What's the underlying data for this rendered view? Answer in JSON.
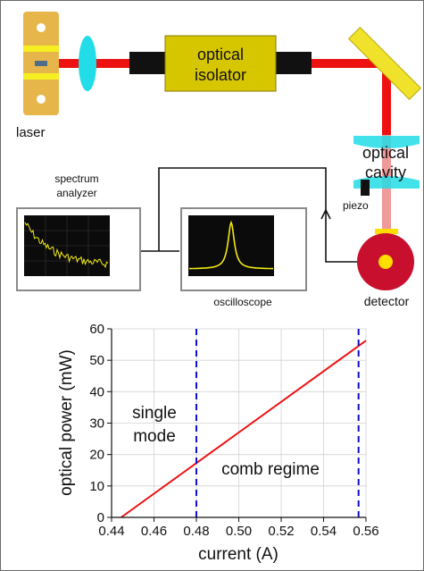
{
  "schematic": {
    "laser_label": "laser",
    "isolator_label_line1": "optical",
    "isolator_label_line2": "isolator",
    "cavity_label_line1": "optical",
    "cavity_label_line2": "cavity",
    "piezo_label": "piezo",
    "detector_label": "detector",
    "spectrum_label_line1": "spectrum",
    "spectrum_label_line2": "analyzer",
    "oscilloscope_label": "oscilloscope",
    "colors": {
      "beam": "#ee1111",
      "beam_faded": "#f09a9a",
      "laser_body": "#e7b64b",
      "laser_stripe": "#f5ef22",
      "lens": "#22dde8",
      "isolator": "#d6c600",
      "mirror": "#f0e22a",
      "detector": "#c8102e",
      "detector_center": "#ffdd00",
      "trace": "#f2ea12"
    }
  },
  "chart_data": {
    "type": "line",
    "xlabel": "current (A)",
    "ylabel": "optical power (mW)",
    "xlim": [
      0.44,
      0.56
    ],
    "ylim": [
      0,
      60
    ],
    "xticks": [
      "0.44",
      "0.46",
      "0.48",
      "0.50",
      "0.52",
      "0.54",
      "0.56"
    ],
    "yticks": [
      "0",
      "10",
      "20",
      "30",
      "40",
      "50",
      "60"
    ],
    "grid": true,
    "series": [
      {
        "points": [
          [
            0.4445,
            0
          ],
          [
            0.5605,
            56.5
          ]
        ],
        "color": "#ee1111"
      }
    ],
    "vlines": [
      0.48,
      0.5565
    ],
    "vline_color": "#1010cc",
    "annotations": {
      "single_line1": "single",
      "single_line2": "mode",
      "comb": "comb regime"
    }
  }
}
